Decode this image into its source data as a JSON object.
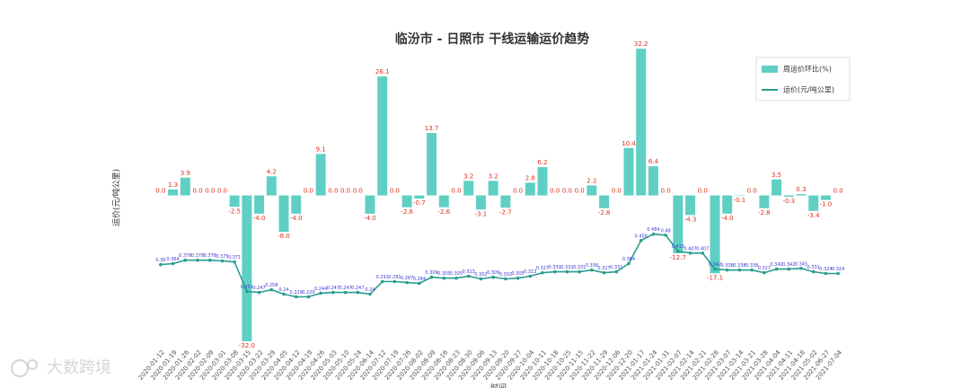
{
  "chart_data": {
    "type": "bar_line",
    "title": "临汾市 - 日照市 干线运输运价趋势",
    "ylabel": "运价(元/吨公里)",
    "xlabel": "时间",
    "watermark": "大数跨境",
    "legend": "upper right",
    "categories": [
      "2020-01-12",
      "2020-01-19",
      "2020-01-26",
      "2020-02-02",
      "2020-02-09",
      "2020-03-01",
      "2020-03-08",
      "2020-03-15",
      "2020-03-22",
      "2020-03-29",
      "2020-04-05",
      "2020-04-12",
      "2020-04-19",
      "2020-04-26",
      "2020-05-03",
      "2020-05-10",
      "2020-05-24",
      "2020-06-14",
      "2020-07-12",
      "2020-07-19",
      "2020-07-26",
      "2020-08-02",
      "2020-08-09",
      "2020-08-16",
      "2020-08-23",
      "2020-08-30",
      "2020-09-06",
      "2020-09-13",
      "2020-09-20",
      "2020-09-27",
      "2020-10-04",
      "2020-10-11",
      "2020-10-18",
      "2020-10-25",
      "2020-11-15",
      "2020-11-22",
      "2020-11-29",
      "2020-12-06",
      "2020-12-20",
      "2021-01-17",
      "2021-01-24",
      "2021-01-31",
      "2021-02-07",
      "2021-02-14",
      "2021-02-21",
      "2021-02-28",
      "2021-03-07",
      "2021-03-14",
      "2021-03-21",
      "2021-03-28",
      "2021-04-04",
      "2021-04-11",
      "2021-04-18",
      "2021-05-02",
      "2021-06-27",
      "2021-07-04"
    ],
    "ylim": [
      -33,
      35
    ],
    "y2lim": [
      0.03,
      1.29
    ],
    "series": [
      {
        "name": "周运价环比(%)",
        "color": "#5fcfc4",
        "label_color": "#e0301e",
        "values": [
          0.0,
          1.3,
          3.9,
          0.0,
          0.0,
          0.0,
          -2.5,
          -32.0,
          -4.0,
          4.2,
          -8.0,
          -4.0,
          0.0,
          9.1,
          0.0,
          0.0,
          0.0,
          -4.0,
          26.1,
          0.0,
          -2.6,
          -0.7,
          13.7,
          -2.6,
          0.0,
          3.2,
          -3.1,
          3.2,
          -2.7,
          0.0,
          2.8,
          6.2,
          0.0,
          0.0,
          0.0,
          2.2,
          -2.8,
          0.0,
          10.4,
          32.2,
          6.4,
          0.0,
          -12.7,
          -4.3,
          0.0,
          -17.1,
          -4.0,
          -0.1,
          0.0,
          -2.8,
          3.5,
          -0.3,
          0.3,
          -3.4,
          -1.0,
          0.0
        ],
        "value_labels": [
          "0.0",
          "1.3",
          "3.9",
          "0.0",
          "0.0",
          "0.0",
          "-2.5",
          "-32.0",
          "-4.0",
          "4.2",
          "-8.0",
          "-4.0",
          "0.0",
          "9.1",
          "0.0",
          "0.0",
          "0.0",
          "-4.0",
          "26.1",
          "0.0",
          "-2.6",
          "-0.7",
          "13.7",
          "-2.6",
          "0.0",
          "3.2",
          "-3.1",
          "3.2",
          "-2.7",
          "0.0",
          "2.8",
          "6.2",
          "0.0",
          "0.0",
          "0.0",
          "2.2",
          "-2.8",
          "0.0",
          "10.4",
          "32.2",
          "6.4",
          "0.0",
          "-12.7",
          "-4.3",
          "0.0",
          "-17.1",
          "-4.0",
          "-0.1",
          "0.0",
          "-2.8",
          "3.5",
          "-0.3",
          "0.3",
          "-3.4",
          "-1.0",
          "0.0"
        ]
      },
      {
        "name": "运价(元/吨公里)",
        "color": "#2a9d8f",
        "label_color": "#3b3bd6",
        "axis": "y2",
        "values": [
          0.36,
          0.364,
          0.378,
          0.378,
          0.378,
          0.375,
          0.371,
          0.251,
          0.247,
          0.258,
          0.24,
          0.229,
          0.229,
          0.244,
          0.247,
          0.247,
          0.247,
          0.24,
          0.291,
          0.291,
          0.287,
          0.284,
          0.309,
          0.305,
          0.305,
          0.313,
          0.302,
          0.309,
          0.302,
          0.305,
          0.313,
          0.327,
          0.331,
          0.331,
          0.331,
          0.338,
          0.327,
          0.331,
          0.364,
          0.458,
          0.484,
          0.48,
          0.415,
          0.407,
          0.407,
          0.342,
          0.338,
          0.338,
          0.338,
          0.327,
          0.342,
          0.342,
          0.345,
          0.331,
          0.324,
          0.324
        ]
      }
    ]
  }
}
